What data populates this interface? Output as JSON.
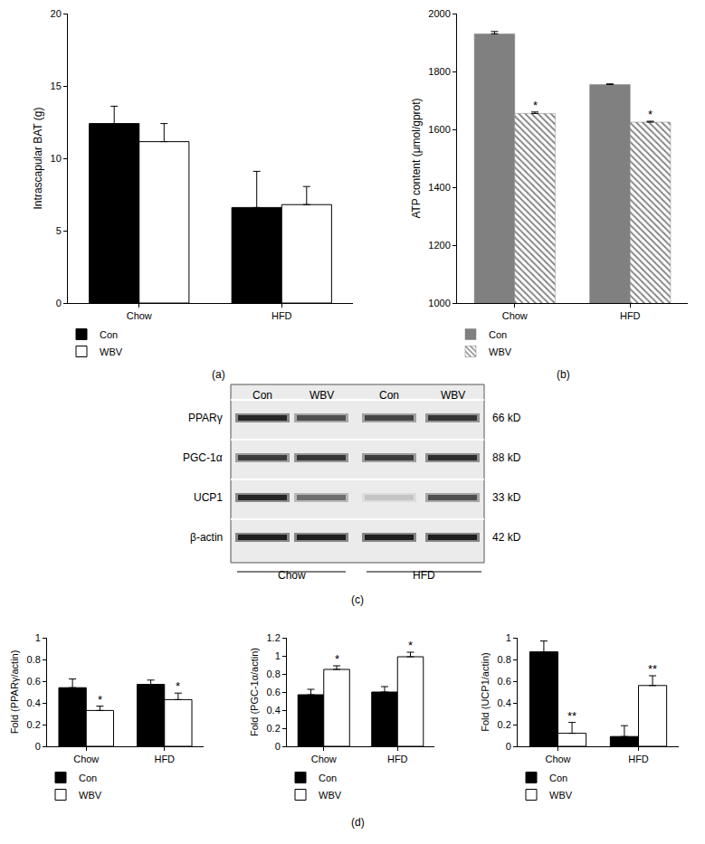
{
  "chart_data": [
    {
      "type": "bar",
      "ylabel": "Intrascapular BAT (g)",
      "categories": [
        "Chow",
        "HFD"
      ],
      "series": [
        {
          "name": "Con",
          "color": "#000000",
          "values": [
            12.4,
            6.6
          ],
          "errors": [
            1.2,
            2.5
          ]
        },
        {
          "name": "WBV",
          "color": "#ffffff",
          "values": [
            11.15,
            6.8
          ],
          "errors": [
            1.25,
            1.25
          ]
        }
      ],
      "ylim": [
        0,
        20
      ],
      "yticks": [
        0,
        5,
        10,
        15,
        20
      ],
      "grid": false,
      "legend": "below"
    },
    {
      "type": "bar",
      "ylabel": "ATP content (μmol/gprot)",
      "categories": [
        "Chow",
        "HFD"
      ],
      "series": [
        {
          "name": "Con",
          "color": "#808080",
          "values": [
            1930,
            1755
          ],
          "errors": [
            8,
            2
          ]
        },
        {
          "name": "WBV",
          "color": "#808080",
          "marker": "hatched",
          "values": [
            1655,
            1625
          ],
          "errors": [
            5,
            3
          ],
          "annotations": [
            "*",
            "*"
          ]
        }
      ],
      "ylim": [
        1000,
        2000
      ],
      "yticks": [
        1000,
        1200,
        1400,
        1600,
        1800,
        2000
      ],
      "grid": false,
      "legend": "below"
    },
    {
      "type": "bar",
      "ylabel": "Fold (PPARγ/actin)",
      "categories": [
        "Chow",
        "HFD"
      ],
      "series": [
        {
          "name": "Con",
          "color": "#000000",
          "values": [
            0.54,
            0.57
          ],
          "errors": [
            0.08,
            0.04
          ]
        },
        {
          "name": "WBV",
          "color": "#ffffff",
          "values": [
            0.33,
            0.43
          ],
          "errors": [
            0.04,
            0.06
          ],
          "annotations": [
            "*",
            "*"
          ]
        }
      ],
      "ylim": [
        0,
        1
      ],
      "yticks": [
        0,
        0.2,
        0.4,
        0.6,
        0.8,
        1
      ],
      "grid": false,
      "legend": "below"
    },
    {
      "type": "bar",
      "ylabel": "Fold (PGC-1α/actin)",
      "categories": [
        "Chow",
        "HFD"
      ],
      "series": [
        {
          "name": "Con",
          "color": "#000000",
          "values": [
            0.57,
            0.6
          ],
          "errors": [
            0.06,
            0.06
          ]
        },
        {
          "name": "WBV",
          "color": "#ffffff",
          "values": [
            0.85,
            0.99
          ],
          "errors": [
            0.04,
            0.05
          ],
          "annotations": [
            "*",
            "*"
          ]
        }
      ],
      "ylim": [
        0,
        1.2
      ],
      "yticks": [
        0,
        0.2,
        0.4,
        0.6,
        0.8,
        1,
        1.2
      ],
      "grid": false,
      "legend": "below"
    },
    {
      "type": "bar",
      "ylabel": "Fold (UCP1/actin)",
      "categories": [
        "Chow",
        "HFD"
      ],
      "series": [
        {
          "name": "Con",
          "color": "#000000",
          "values": [
            0.87,
            0.09
          ],
          "errors": [
            0.1,
            0.1
          ]
        },
        {
          "name": "WBV",
          "color": "#ffffff",
          "values": [
            0.12,
            0.56
          ],
          "errors": [
            0.1,
            0.09
          ],
          "annotations": [
            "**",
            "**"
          ]
        }
      ],
      "ylim": [
        0,
        1
      ],
      "yticks": [
        0,
        0.2,
        0.4,
        0.6,
        0.8,
        1
      ],
      "grid": false,
      "legend": "below"
    }
  ],
  "blot": {
    "lanes": [
      "Con",
      "WBV",
      "Con",
      "WBV"
    ],
    "rows": [
      {
        "protein": "PPARγ",
        "size": "66 kD"
      },
      {
        "protein": "PGC-1α",
        "size": "88 kD"
      },
      {
        "protein": "UCP1",
        "size": "33 kD"
      },
      {
        "protein": "β-actin",
        "size": "42 kD"
      }
    ],
    "groups": [
      "Chow",
      "HFD"
    ]
  },
  "panel_labels": [
    "(a)",
    "(b)",
    "(c)",
    "(d)"
  ]
}
